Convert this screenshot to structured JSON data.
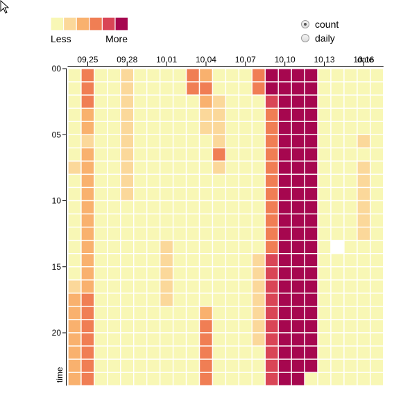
{
  "chart_data": {
    "type": "heatmap",
    "x_label": "date",
    "y_label": "time",
    "x_tick_labels": [
      "09.25",
      "09.28",
      "10.01",
      "10.04",
      "10.07",
      "10.10",
      "10.13",
      "10.16"
    ],
    "y_tick_labels": [
      "00",
      "05",
      "10",
      "15",
      "20"
    ],
    "dates": [
      "09.24",
      "09.25",
      "09.26",
      "09.27",
      "09.28",
      "09.29",
      "09.30",
      "10.01",
      "10.02",
      "10.03",
      "10.04",
      "10.05",
      "10.06",
      "10.07",
      "10.08",
      "10.09",
      "10.10",
      "10.11",
      "10.12",
      "10.13",
      "10.14",
      "10.15",
      "10.16",
      "10.17"
    ],
    "hours": [
      "00",
      "01",
      "02",
      "03",
      "04",
      "05",
      "06",
      "07",
      "08",
      "09",
      "10",
      "11",
      "12",
      "13",
      "14",
      "15",
      "16",
      "17",
      "18",
      "19",
      "20",
      "21",
      "22",
      "23"
    ],
    "color_scale": [
      "#f8f7b5",
      "#fbd89a",
      "#f9b16e",
      "#f07e54",
      "#d94556",
      "#a6074f"
    ],
    "matrix": [
      [
        0,
        3,
        0,
        0,
        1,
        0,
        0,
        0,
        0,
        3,
        2,
        0,
        0,
        0,
        3,
        5,
        5,
        5,
        5,
        0,
        0,
        0,
        0,
        0
      ],
      [
        0,
        3,
        0,
        0,
        1,
        0,
        0,
        0,
        0,
        3,
        3,
        0,
        0,
        0,
        3,
        5,
        5,
        5,
        5,
        0,
        0,
        0,
        0,
        0
      ],
      [
        0,
        3,
        0,
        0,
        1,
        0,
        0,
        0,
        0,
        0,
        2,
        1,
        0,
        0,
        0,
        4,
        5,
        5,
        5,
        0,
        0,
        0,
        0,
        0
      ],
      [
        0,
        2,
        0,
        0,
        1,
        0,
        0,
        0,
        0,
        0,
        1,
        1,
        0,
        0,
        0,
        3,
        5,
        5,
        5,
        0,
        0,
        0,
        0,
        0
      ],
      [
        0,
        2,
        0,
        0,
        1,
        0,
        0,
        0,
        0,
        0,
        1,
        1,
        0,
        0,
        0,
        3,
        5,
        5,
        5,
        0,
        0,
        0,
        0,
        0
      ],
      [
        0,
        1,
        0,
        0,
        1,
        0,
        0,
        0,
        0,
        0,
        0,
        1,
        0,
        0,
        0,
        3,
        5,
        5,
        5,
        0,
        0,
        0,
        1,
        0
      ],
      [
        0,
        2,
        0,
        0,
        1,
        0,
        0,
        0,
        0,
        0,
        0,
        3,
        0,
        0,
        0,
        3,
        5,
        5,
        5,
        0,
        0,
        0,
        0,
        0
      ],
      [
        1,
        2,
        0,
        0,
        1,
        0,
        0,
        0,
        0,
        0,
        0,
        1,
        0,
        0,
        0,
        3,
        5,
        5,
        5,
        0,
        0,
        0,
        1,
        0
      ],
      [
        0,
        2,
        0,
        0,
        1,
        0,
        0,
        0,
        0,
        0,
        0,
        0,
        0,
        0,
        0,
        3,
        5,
        5,
        5,
        0,
        0,
        0,
        1,
        0
      ],
      [
        0,
        2,
        0,
        0,
        1,
        0,
        0,
        0,
        0,
        0,
        0,
        0,
        0,
        0,
        0,
        3,
        5,
        5,
        5,
        0,
        0,
        0,
        1,
        0
      ],
      [
        0,
        2,
        0,
        0,
        0,
        0,
        0,
        0,
        0,
        0,
        0,
        0,
        0,
        0,
        0,
        3,
        5,
        5,
        5,
        0,
        0,
        0,
        1,
        0
      ],
      [
        0,
        2,
        0,
        0,
        0,
        0,
        0,
        0,
        0,
        0,
        0,
        0,
        0,
        0,
        0,
        3,
        5,
        5,
        5,
        0,
        0,
        0,
        1,
        0
      ],
      [
        0,
        2,
        0,
        0,
        0,
        0,
        0,
        0,
        0,
        0,
        0,
        0,
        0,
        0,
        0,
        3,
        5,
        5,
        5,
        0,
        0,
        0,
        1,
        0
      ],
      [
        0,
        2,
        0,
        0,
        0,
        0,
        0,
        1,
        0,
        0,
        0,
        0,
        0,
        0,
        0,
        3,
        5,
        5,
        5,
        0,
        0,
        0,
        0,
        0
      ],
      [
        0,
        2,
        0,
        0,
        0,
        0,
        0,
        1,
        0,
        0,
        0,
        0,
        0,
        0,
        1,
        4,
        5,
        5,
        5,
        0,
        0,
        0,
        0,
        0
      ],
      [
        0,
        2,
        0,
        0,
        0,
        0,
        0,
        1,
        0,
        0,
        0,
        0,
        0,
        0,
        1,
        4,
        5,
        5,
        5,
        0,
        0,
        0,
        0,
        0
      ],
      [
        1,
        2,
        0,
        0,
        0,
        0,
        0,
        1,
        0,
        0,
        0,
        0,
        0,
        0,
        1,
        4,
        5,
        5,
        5,
        0,
        0,
        0,
        0,
        0
      ],
      [
        2,
        3,
        0,
        0,
        0,
        0,
        0,
        1,
        0,
        0,
        0,
        0,
        0,
        0,
        1,
        4,
        5,
        5,
        5,
        0,
        0,
        0,
        0,
        0
      ],
      [
        2,
        3,
        0,
        0,
        0,
        0,
        0,
        0,
        0,
        0,
        2,
        0,
        0,
        0,
        1,
        4,
        5,
        5,
        5,
        0,
        0,
        0,
        0,
        0
      ],
      [
        2,
        3,
        0,
        0,
        0,
        0,
        0,
        0,
        0,
        0,
        3,
        0,
        0,
        0,
        1,
        4,
        5,
        5,
        5,
        0,
        0,
        0,
        0,
        0
      ],
      [
        2,
        3,
        0,
        0,
        0,
        0,
        0,
        0,
        0,
        0,
        3,
        0,
        0,
        0,
        1,
        4,
        5,
        5,
        5,
        0,
        0,
        0,
        0,
        0
      ],
      [
        2,
        3,
        0,
        0,
        0,
        0,
        0,
        0,
        0,
        0,
        3,
        0,
        0,
        0,
        0,
        4,
        5,
        5,
        5,
        0,
        0,
        0,
        0,
        0
      ],
      [
        2,
        3,
        0,
        0,
        0,
        0,
        0,
        0,
        0,
        0,
        3,
        0,
        0,
        0,
        0,
        4,
        5,
        5,
        5,
        0,
        0,
        0,
        0,
        0
      ],
      [
        2,
        3,
        0,
        0,
        0,
        0,
        0,
        0,
        0,
        0,
        3,
        0,
        0,
        0,
        0,
        4,
        5,
        5,
        0,
        0,
        0,
        0,
        0,
        0
      ]
    ],
    "empty_cells": [
      [
        13,
        20
      ]
    ]
  },
  "legend": {
    "less_label": "Less",
    "more_label": "More"
  },
  "controls": {
    "options": [
      {
        "label": "count",
        "checked": true
      },
      {
        "label": "daily",
        "checked": false
      }
    ]
  }
}
